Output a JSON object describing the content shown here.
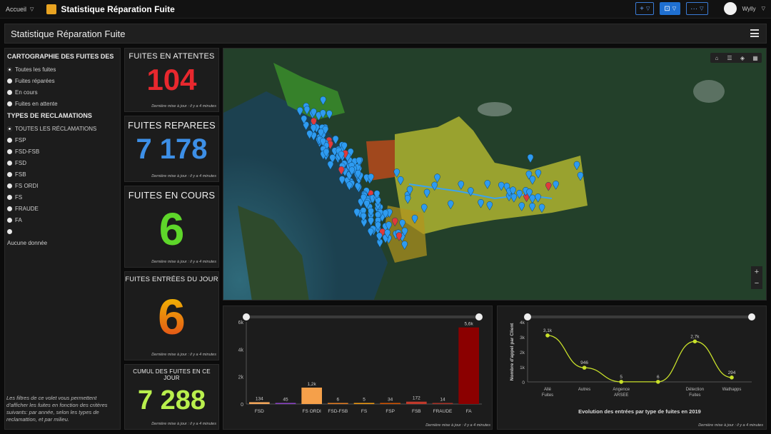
{
  "topbar": {
    "home_label": "Accueil",
    "app_title": "Statistique Réparation Fuite",
    "add_label": "+",
    "monitor_label": "⊡",
    "more_label": "···",
    "user_name": "Wylly"
  },
  "header": {
    "title": "Statistique Réparation Fuite"
  },
  "filters": {
    "section1_title": "CARTOGRAPHIE DES FUITES DES",
    "section1_options": [
      "Toutes les fuites",
      "Fuites réparées",
      "En cours",
      "Fuites en attente"
    ],
    "section2_title": "TYPES DE RECLAMATIONS",
    "section2_options": [
      "TOUTES LES RÉCLAMATIONS",
      "FSP",
      "FSD-FSB",
      "FSD",
      "FSB",
      "FS ORDI",
      "FS",
      "FRAUDE",
      "FA",
      ""
    ],
    "empty_label": "Aucune donnée",
    "note": "Les filtres de ce volet vous permettent d'afficher les fuites en fonction des critères suivants: par année, selon les types de reclamattion, et par milieu."
  },
  "kpis": [
    {
      "title": "FUITES EN ATTENTES",
      "value": "104",
      "color": "#e8282e",
      "updated": "Dernière mise à jour : il y a 4 minutes"
    },
    {
      "title": "FUITES REPAREES",
      "value": "7 178",
      "color": "#3d8fe6",
      "updated": "Dernière mise à jour : il y a 4 minutes"
    },
    {
      "title": "FUITES EN COURS",
      "value": "6",
      "color": "#5ed62a",
      "updated": "Dernière mise à jour : il y a 4 minutes"
    },
    {
      "title": "FUITES ENTRÉES DU JOUR",
      "value": "6",
      "color": "#f07a16",
      "updated": "Dernière mise à jour : il y a 4 minutes"
    },
    {
      "title": "CUMUL DES FUITES EN CE JOUR",
      "value": "7 288",
      "color": "#b9ef4d",
      "updated": "Dernière mise à jour : il y a 4 minutes"
    }
  ],
  "map": {
    "tool_icons": [
      "home-icon",
      "list-icon",
      "layers-icon",
      "basemap-icon"
    ],
    "zoom_in": "+",
    "zoom_out": "−"
  },
  "chart_data": [
    {
      "type": "bar",
      "categories": [
        "FSD",
        "FSD-FSB",
        "FS ORDI",
        "FSD-FSB",
        "FS",
        "FSP",
        "FSB",
        "FRAUDE",
        "FA"
      ],
      "values": [
        134,
        45,
        1200,
        6,
        5,
        34,
        172,
        14,
        5600
      ],
      "data_labels": [
        "134",
        "45",
        "1,2k",
        "6",
        "5",
        "34",
        "172",
        "14",
        "5,6k"
      ],
      "xtick_labels": [
        "FSD",
        "",
        "FS ORDI",
        "FSD-FSB",
        "FS",
        "FSP",
        "FSB",
        "FRAUDE",
        "FA"
      ],
      "colors": [
        "#f2a65a",
        "#8e44c9",
        "#f5a04a",
        "#e67e22",
        "#f39c12",
        "#d35400",
        "#c0392b",
        "#a93226",
        "#8b0000"
      ],
      "yticks": [
        "0",
        "2k",
        "4k",
        "6k"
      ],
      "ylim": [
        0,
        6000
      ],
      "updated": "Dernière mise à jour : il y a 4 minutes"
    },
    {
      "type": "line",
      "categories": [
        "Alié Fuites",
        "Autres",
        "Angence ARSEE",
        "",
        "Détection Fuites",
        "Wathapps"
      ],
      "values": [
        3100,
        946,
        5,
        6,
        2700,
        294
      ],
      "data_labels": [
        "3,1k",
        "946",
        "5",
        "6",
        "2,7k",
        "294"
      ],
      "xtick_labels": [
        "Allé\nFuites",
        "Autres",
        "Angence\nARSEE",
        "",
        "Détection\nFuites",
        "Wathapps"
      ],
      "yticks": [
        "0",
        "1k",
        "2k",
        "3k",
        "4k"
      ],
      "ylim": [
        0,
        4000
      ],
      "ylabel": "Nombre d'appel par Client",
      "title": "Evolution des entrées par type de fuites en 2019",
      "color": "#c8e02a",
      "updated": "Dernière mise à jour : il y a 4 minutes"
    }
  ]
}
